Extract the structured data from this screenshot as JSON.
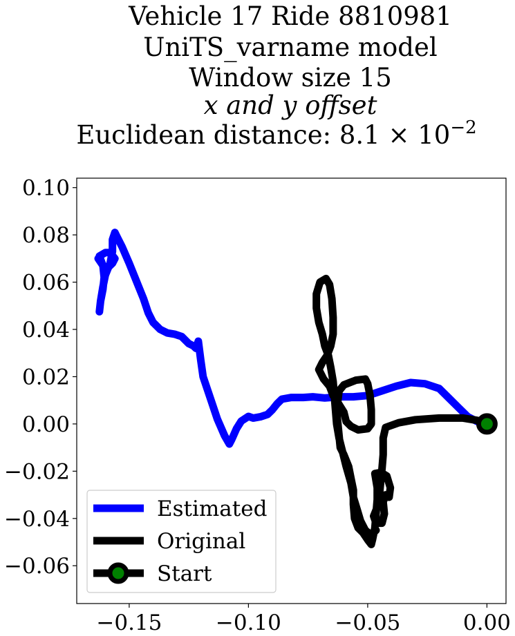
{
  "chart_data": {
    "type": "line",
    "title_lines": [
      "Vehicle 17 Ride 8810981",
      "UniTS_varname model",
      "Window size 15",
      "x and y offset",
      "Euclidean distance: 8.1 × 10"
    ],
    "title_exponent": "−2",
    "xlim": [
      -0.172,
      0.008
    ],
    "ylim": [
      -0.076,
      0.104
    ],
    "xticks": [
      -0.15,
      -0.1,
      -0.05,
      0.0
    ],
    "xtick_labels": [
      "−0.15",
      "−0.10",
      "−0.05",
      "0.00"
    ],
    "yticks": [
      0.1,
      0.08,
      0.06,
      0.04,
      0.02,
      0.0,
      -0.02,
      -0.04,
      -0.06
    ],
    "ytick_labels": [
      "0.10",
      "0.08",
      "0.06",
      "0.04",
      "0.02",
      "0.00",
      "−0.02",
      "−0.04",
      "−0.06"
    ],
    "grid": false,
    "legend_position": "lower-left",
    "series": [
      {
        "name": "Estimated",
        "color": "#0000ff",
        "points": [
          [
            0.0,
            0.0
          ],
          [
            -0.004,
            0.001
          ],
          [
            -0.008,
            0.003
          ],
          [
            -0.012,
            0.007
          ],
          [
            -0.016,
            0.011
          ],
          [
            -0.02,
            0.015
          ],
          [
            -0.026,
            0.017
          ],
          [
            -0.032,
            0.0175
          ],
          [
            -0.038,
            0.016
          ],
          [
            -0.044,
            0.014
          ],
          [
            -0.05,
            0.012
          ],
          [
            -0.056,
            0.0115
          ],
          [
            -0.062,
            0.0115
          ],
          [
            -0.068,
            0.011
          ],
          [
            -0.073,
            0.0115
          ],
          [
            -0.077,
            0.0112
          ],
          [
            -0.082,
            0.0112
          ],
          [
            -0.086,
            0.0105
          ],
          [
            -0.088,
            0.0085
          ],
          [
            -0.09,
            0.006
          ],
          [
            -0.092,
            0.004
          ],
          [
            -0.095,
            0.003
          ],
          [
            -0.098,
            0.0025
          ],
          [
            -0.1,
            0.0032
          ],
          [
            -0.103,
            0.0012
          ],
          [
            -0.105,
            -0.002
          ],
          [
            -0.107,
            -0.0065
          ],
          [
            -0.108,
            -0.0085
          ],
          [
            -0.11,
            -0.005
          ],
          [
            -0.113,
            0.002
          ],
          [
            -0.115,
            0.008
          ],
          [
            -0.117,
            0.014
          ],
          [
            -0.119,
            0.02
          ],
          [
            -0.12,
            0.027
          ],
          [
            -0.121,
            0.035
          ],
          [
            -0.122,
            0.032
          ],
          [
            -0.123,
            0.033
          ],
          [
            -0.125,
            0.034
          ],
          [
            -0.128,
            0.037
          ],
          [
            -0.131,
            0.038
          ],
          [
            -0.134,
            0.0385
          ],
          [
            -0.137,
            0.04
          ],
          [
            -0.14,
            0.043
          ],
          [
            -0.142,
            0.047
          ],
          [
            -0.144,
            0.053
          ],
          [
            -0.146,
            0.058
          ],
          [
            -0.148,
            0.063
          ],
          [
            -0.15,
            0.068
          ],
          [
            -0.153,
            0.075
          ],
          [
            -0.155,
            0.079
          ],
          [
            -0.156,
            0.081
          ],
          [
            -0.157,
            0.078
          ],
          [
            -0.157,
            0.073
          ],
          [
            -0.158,
            0.068
          ],
          [
            -0.16,
            0.063
          ],
          [
            -0.161,
            0.058
          ],
          [
            -0.162,
            0.052
          ],
          [
            -0.1625,
            0.0475
          ],
          [
            -0.162,
            0.052
          ],
          [
            -0.161,
            0.057
          ],
          [
            -0.1605,
            0.062
          ],
          [
            -0.161,
            0.067
          ],
          [
            -0.1625,
            0.071
          ],
          [
            -0.16,
            0.0725
          ],
          [
            -0.158,
            0.0725
          ],
          [
            -0.156,
            0.07
          ],
          [
            -0.157,
            0.068
          ],
          [
            -0.159,
            0.066
          ],
          [
            -0.161,
            0.067
          ],
          [
            -0.163,
            0.07
          ]
        ]
      },
      {
        "name": "Original",
        "color": "#000000",
        "points": [
          [
            0.0,
            0.0
          ],
          [
            -0.004,
            0.0015
          ],
          [
            -0.01,
            0.0025
          ],
          [
            -0.02,
            0.0025
          ],
          [
            -0.03,
            0.0018
          ],
          [
            -0.037,
            0.0005
          ],
          [
            -0.0425,
            -0.0015
          ],
          [
            -0.0435,
            -0.006
          ],
          [
            -0.0435,
            -0.013
          ],
          [
            -0.044,
            -0.019
          ],
          [
            -0.0445,
            -0.024
          ],
          [
            -0.045,
            -0.029
          ],
          [
            -0.0455,
            -0.034
          ],
          [
            -0.0475,
            -0.039
          ],
          [
            -0.0465,
            -0.042
          ],
          [
            -0.044,
            -0.042
          ],
          [
            -0.043,
            -0.038
          ],
          [
            -0.0435,
            -0.033
          ],
          [
            -0.0425,
            -0.03
          ],
          [
            -0.041,
            -0.031
          ],
          [
            -0.0405,
            -0.027
          ],
          [
            -0.042,
            -0.022
          ],
          [
            -0.0445,
            -0.0205
          ],
          [
            -0.047,
            -0.021
          ],
          [
            -0.046,
            -0.027
          ],
          [
            -0.046,
            -0.032
          ],
          [
            -0.0465,
            -0.038
          ],
          [
            -0.047,
            -0.044
          ],
          [
            -0.048,
            -0.049
          ],
          [
            -0.0485,
            -0.051
          ],
          [
            -0.05,
            -0.049
          ],
          [
            -0.052,
            -0.046
          ],
          [
            -0.054,
            -0.044
          ],
          [
            -0.0555,
            -0.04
          ],
          [
            -0.056,
            -0.034
          ],
          [
            -0.056,
            -0.028
          ],
          [
            -0.057,
            -0.023
          ],
          [
            -0.058,
            -0.018
          ],
          [
            -0.06,
            -0.013
          ],
          [
            -0.0615,
            -0.01
          ],
          [
            -0.062,
            -0.005
          ],
          [
            -0.0625,
            0.0
          ],
          [
            -0.063,
            0.005
          ],
          [
            -0.0625,
            0.01
          ],
          [
            -0.062,
            0.014
          ],
          [
            -0.06,
            0.0165
          ],
          [
            -0.055,
            0.0185
          ],
          [
            -0.051,
            0.019
          ],
          [
            -0.05,
            0.017
          ],
          [
            -0.049,
            0.012
          ],
          [
            -0.0485,
            0.006
          ],
          [
            -0.0485,
            0.0
          ],
          [
            -0.05,
            -0.002
          ],
          [
            -0.054,
            -0.0025
          ],
          [
            -0.057,
            -0.001
          ],
          [
            -0.059,
            0.001
          ],
          [
            -0.06,
            0.005
          ],
          [
            -0.0625,
            0.009
          ],
          [
            -0.0645,
            0.012
          ],
          [
            -0.066,
            0.016
          ],
          [
            -0.0685,
            0.019
          ],
          [
            -0.0705,
            0.023
          ],
          [
            -0.069,
            0.026
          ],
          [
            -0.067,
            0.029
          ],
          [
            -0.0655,
            0.033
          ],
          [
            -0.0645,
            0.038
          ],
          [
            -0.0645,
            0.045
          ],
          [
            -0.065,
            0.053
          ],
          [
            -0.066,
            0.059
          ],
          [
            -0.0675,
            0.0615
          ],
          [
            -0.07,
            0.06
          ],
          [
            -0.0715,
            0.055
          ],
          [
            -0.0715,
            0.049
          ],
          [
            -0.0705,
            0.043
          ],
          [
            -0.069,
            0.038
          ],
          [
            -0.068,
            0.033
          ],
          [
            -0.0665,
            0.029
          ],
          [
            -0.0655,
            0.024
          ],
          [
            -0.0645,
            0.018
          ],
          [
            -0.064,
            0.012
          ],
          [
            -0.0635,
            0.006
          ],
          [
            -0.063,
            0.0
          ],
          [
            -0.062,
            -0.006
          ],
          [
            -0.0605,
            -0.012
          ],
          [
            -0.059,
            -0.018
          ],
          [
            -0.057,
            -0.025
          ],
          [
            -0.056,
            -0.031
          ],
          [
            -0.0545,
            -0.036
          ],
          [
            -0.053,
            -0.041
          ],
          [
            -0.051,
            -0.045
          ],
          [
            -0.0485,
            -0.047
          ],
          [
            -0.0465,
            -0.045
          ]
        ]
      }
    ],
    "start_point": [
      0.0,
      0.0
    ],
    "start_marker": {
      "edge_color": "#000000",
      "face_color": "#008000"
    },
    "legend": [
      {
        "label": "Estimated",
        "color": "#0000ff",
        "marker": false
      },
      {
        "label": "Original",
        "color": "#000000",
        "marker": false
      },
      {
        "label": "Start",
        "color": "#000000",
        "marker": true
      }
    ]
  }
}
